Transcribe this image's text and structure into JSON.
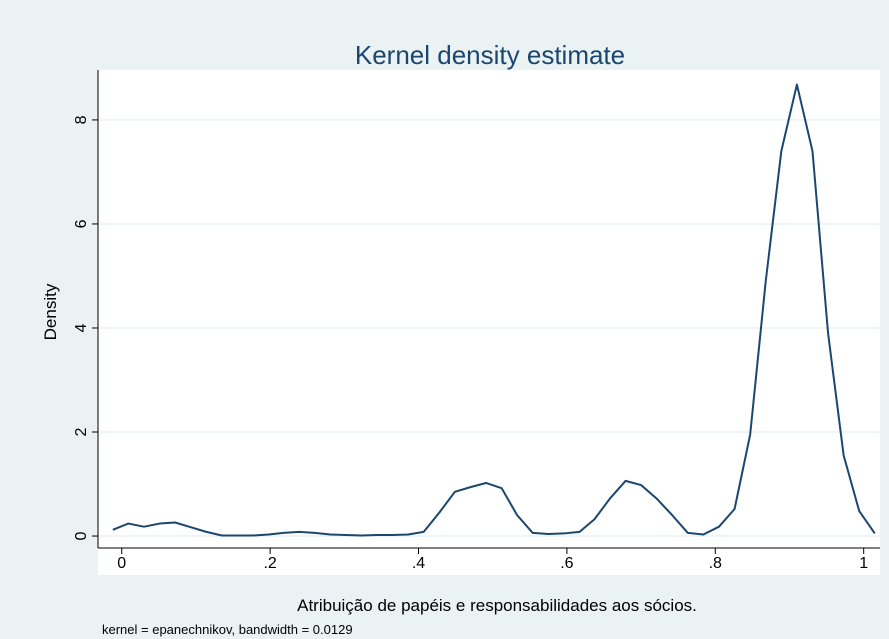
{
  "chart_data": {
    "type": "line",
    "title": "Kernel density estimate",
    "x_label": "Atribuição de papéis e responsabilidades aos sócios.",
    "y_label": "Density",
    "note": "kernel = epanechnikov, bandwidth = 0.0129",
    "x": [
      -0.012,
      0.009,
      0.03,
      0.051,
      0.072,
      0.093,
      0.114,
      0.135,
      0.156,
      0.177,
      0.198,
      0.218,
      0.239,
      0.26,
      0.281,
      0.302,
      0.323,
      0.344,
      0.365,
      0.386,
      0.407,
      0.428,
      0.449,
      0.47,
      0.491,
      0.512,
      0.533,
      0.554,
      0.575,
      0.596,
      0.617,
      0.637,
      0.658,
      0.679,
      0.7,
      0.721,
      0.742,
      0.763,
      0.784,
      0.805,
      0.826,
      0.847,
      0.868,
      0.889,
      0.91,
      0.931,
      0.952,
      0.973,
      0.994,
      1.015
    ],
    "series": [
      {
        "color": "#1a476f",
        "values": [
          0.12,
          0.24,
          0.18,
          0.24,
          0.26,
          0.17,
          0.08,
          0.01,
          0.01,
          0.01,
          0.03,
          0.06,
          0.08,
          0.06,
          0.03,
          0.02,
          0.01,
          0.02,
          0.02,
          0.03,
          0.08,
          0.45,
          0.85,
          0.94,
          1.02,
          0.92,
          0.4,
          0.06,
          0.04,
          0.05,
          0.08,
          0.32,
          0.72,
          1.06,
          0.98,
          0.72,
          0.4,
          0.06,
          0.03,
          0.18,
          0.52,
          1.95,
          4.9,
          7.4,
          8.68,
          7.4,
          3.9,
          1.55,
          0.48,
          0.05
        ]
      }
    ],
    "xlim": [
      -0.032,
      1.022
    ],
    "ylim": [
      -0.23,
      8.96
    ],
    "xticks": [
      0,
      {
        "value": 0.2,
        "label": ".2"
      },
      {
        "value": 0.4,
        "label": ".4"
      },
      {
        "value": 0.6,
        "label": ".6"
      },
      {
        "value": 0.8,
        "label": ".8"
      },
      1
    ],
    "yticks": [
      0,
      2,
      4,
      6,
      8
    ],
    "grid": true
  }
}
